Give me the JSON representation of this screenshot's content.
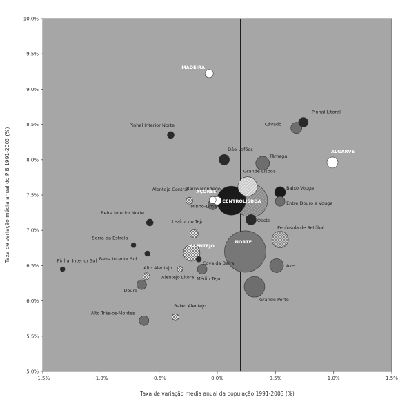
{
  "chart_data": {
    "type": "scatter",
    "title": "",
    "xlabel": "Taxa de variação média anual da população 1991-2003 (%)",
    "ylabel": "Taxa de variação média anual do PIB 1991-2003 (%)",
    "xlim": [
      -1.5,
      1.5
    ],
    "ylim": [
      5.0,
      10.0
    ],
    "x_tick_labels": [
      "-1,5%",
      "-1,0%",
      "-0,5%",
      "0,0%",
      "0,5%",
      "1,0%",
      "1,5%"
    ],
    "y_tick_labels": [
      "5,0%",
      "5,5%",
      "6,0%",
      "6,5%",
      "7,0%",
      "7,5%",
      "8,0%",
      "8,5%",
      "9,0%",
      "9,5%",
      "10,0%"
    ],
    "reference_line_x": 0.2,
    "grid": false,
    "points": [
      {
        "label": "MADEIRA",
        "x": -0.07,
        "y": 9.22
      },
      {
        "label": "Pinhal Litoral",
        "x": 0.74,
        "y": 8.53
      },
      {
        "label": "Cávado",
        "x": 0.68,
        "y": 8.45
      },
      {
        "label": "ALGARVE",
        "x": 0.99,
        "y": 7.96
      },
      {
        "label": "Pinhal Interior Norte",
        "x": -0.4,
        "y": 8.35
      },
      {
        "label": "Dão-Lafões",
        "x": 0.06,
        "y": 8.0
      },
      {
        "label": "Tâmega",
        "x": 0.39,
        "y": 7.95
      },
      {
        "label": "Grande Lisboa",
        "x": 0.26,
        "y": 7.62
      },
      {
        "label": "Baixo Mondego",
        "x": 0.0,
        "y": 7.42
      },
      {
        "label": "AÇORES",
        "x": -0.04,
        "y": 7.43
      },
      {
        "label": "Alentejo Central",
        "x": -0.24,
        "y": 7.42
      },
      {
        "label": "Minho-Lima",
        "x": -0.04,
        "y": 7.36
      },
      {
        "label": "CENTRO",
        "x": 0.12,
        "y": 7.42
      },
      {
        "label": "LISBOA",
        "x": 0.29,
        "y": 7.42
      },
      {
        "label": "Baixo Vouga",
        "x": 0.54,
        "y": 7.54
      },
      {
        "label": "Entre Douro e Vouga",
        "x": 0.54,
        "y": 7.41
      },
      {
        "label": "Oeste",
        "x": 0.29,
        "y": 7.15
      },
      {
        "label": "Beira Interior Norte",
        "x": -0.58,
        "y": 7.11
      },
      {
        "label": "Lezíria do Tejo",
        "x": -0.2,
        "y": 6.95
      },
      {
        "label": "Península de Setúbal",
        "x": 0.54,
        "y": 6.87
      },
      {
        "label": "NORTE",
        "x": 0.24,
        "y": 6.7
      },
      {
        "label": "Serra da Estrela",
        "x": -0.72,
        "y": 6.79
      },
      {
        "label": "ALENTEJO",
        "x": -0.22,
        "y": 6.68
      },
      {
        "label": "Beira Interior Sul",
        "x": -0.6,
        "y": 6.67
      },
      {
        "label": "Cova da Beira",
        "x": -0.16,
        "y": 6.59
      },
      {
        "label": "Ave",
        "x": 0.51,
        "y": 6.5
      },
      {
        "label": "Pinhal Interior Sul",
        "x": -1.33,
        "y": 6.45
      },
      {
        "label": "Alto Alentejo",
        "x": -0.61,
        "y": 6.35
      },
      {
        "label": "Médio Tejo",
        "x": -0.13,
        "y": 6.45
      },
      {
        "label": "Alentejo Litoral",
        "x": -0.32,
        "y": 6.45
      },
      {
        "label": "Douro",
        "x": -0.65,
        "y": 6.23
      },
      {
        "label": "Grande Porto",
        "x": 0.32,
        "y": 6.2
      },
      {
        "label": "Baixo Alentejo",
        "x": -0.36,
        "y": 5.77
      },
      {
        "label": "Alto Trás-os-Montes",
        "x": -0.63,
        "y": 5.72
      }
    ]
  },
  "markers": [
    {
      "r": 6,
      "fill": "#ffffff",
      "tx": -40,
      "ty": -7,
      "anchor": "start",
      "white": true
    },
    {
      "r": 7,
      "fill": "#2a2a2a",
      "tx": 12,
      "ty": -13,
      "anchor": "start",
      "white": false
    },
    {
      "r": 8,
      "fill": "#6e6e6e",
      "tx": -46,
      "ty": -3,
      "anchor": "start",
      "white": false
    },
    {
      "r": 8,
      "fill": "#ffffff",
      "tx": -2,
      "ty": -14,
      "anchor": "start",
      "white": true
    },
    {
      "r": 5,
      "fill": "#2a2a2a",
      "tx": -60,
      "ty": -12,
      "anchor": "start",
      "white": false
    },
    {
      "r": 7.5,
      "fill": "#2a2a2a",
      "tx": 5,
      "ty": -13,
      "anchor": "start",
      "white": false
    },
    {
      "r": 10,
      "fill": "#6e6e6e",
      "tx": 10,
      "ty": -8,
      "anchor": "start",
      "white": false
    },
    {
      "r": 14,
      "fill": "pat-hatch-light",
      "tx": -6,
      "ty": -20,
      "anchor": "start",
      "white": false
    },
    {
      "r": 6,
      "fill": "#ffffff",
      "tx": -45,
      "ty": -15,
      "anchor": "start",
      "white": false
    },
    {
      "r": 5,
      "fill": "#ffffff",
      "tx": -24,
      "ty": -10,
      "anchor": "start",
      "white": true
    },
    {
      "r": 5,
      "fill": "pat-cross-white",
      "tx": -54,
      "ty": -14,
      "anchor": "start",
      "white": false
    },
    {
      "r": 7,
      "fill": "#6e6e6e",
      "tx": -32,
      "ty": 4,
      "anchor": "start",
      "white": false
    },
    {
      "r": 21,
      "fill": "#1a1a1a",
      "tx": -13,
      "ty": 3,
      "anchor": "start",
      "white": true
    },
    {
      "r": 24,
      "fill": "pat-hatch-gray",
      "tx": -12,
      "ty": 3,
      "anchor": "start",
      "white": true
    },
    {
      "r": 8,
      "fill": "#1a1a1a",
      "tx": 9,
      "ty": -4,
      "anchor": "start",
      "white": false
    },
    {
      "r": 7,
      "fill": "#6e6e6e",
      "tx": 9,
      "ty": 5,
      "anchor": "start",
      "white": false
    },
    {
      "r": 7.5,
      "fill": "#2a2a2a",
      "tx": 9,
      "ty": 3,
      "anchor": "start",
      "white": false
    },
    {
      "r": 5,
      "fill": "#2a2a2a",
      "tx": -71,
      "ty": -12,
      "anchor": "start",
      "white": false
    },
    {
      "r": 6,
      "fill": "pat-cross-white",
      "tx": -32,
      "ty": -16,
      "anchor": "start",
      "white": false
    },
    {
      "r": 12,
      "fill": "pat-cross-gray",
      "tx": -4,
      "ty": -15,
      "anchor": "start",
      "white": false
    },
    {
      "r": 30,
      "fill": "#777777",
      "tx": -15,
      "ty": -12,
      "anchor": "start",
      "white": true
    },
    {
      "r": 3.5,
      "fill": "#2a2a2a",
      "tx": -60,
      "ty": -8,
      "anchor": "start",
      "white": false
    },
    {
      "r": 12,
      "fill": "pat-cross-white",
      "tx": -3,
      "ty": -8,
      "anchor": "start",
      "white": true
    },
    {
      "r": 4,
      "fill": "#2a2a2a",
      "tx": -70,
      "ty": 10,
      "anchor": "start",
      "white": false
    },
    {
      "r": 4,
      "fill": "#2a2a2a",
      "tx": 6,
      "ty": 8,
      "anchor": "start",
      "white": false
    },
    {
      "r": 10,
      "fill": "#6e6e6e",
      "tx": 14,
      "ty": 2,
      "anchor": "start",
      "white": false
    },
    {
      "r": 3.5,
      "fill": "#2a2a2a",
      "tx": -8,
      "ty": -10,
      "anchor": "start",
      "white": false
    },
    {
      "r": 5,
      "fill": "pat-cross-white",
      "tx": -4,
      "ty": -10,
      "anchor": "start",
      "white": false
    },
    {
      "r": 7,
      "fill": "#6e6e6e",
      "tx": -8,
      "ty": 16,
      "anchor": "start",
      "white": false
    },
    {
      "r": 4,
      "fill": "pat-cross-white",
      "tx": -27,
      "ty": 14,
      "anchor": "start",
      "white": false
    },
    {
      "r": 7,
      "fill": "#6e6e6e",
      "tx": -26,
      "ty": 11,
      "anchor": "start",
      "white": false
    },
    {
      "r": 15,
      "fill": "#6e6e6e",
      "tx": 7,
      "ty": 21,
      "anchor": "start",
      "white": false
    },
    {
      "r": 5,
      "fill": "pat-cross-white",
      "tx": -2,
      "ty": -14,
      "anchor": "start",
      "white": false
    },
    {
      "r": 7,
      "fill": "#6e6e6e",
      "tx": -77,
      "ty": -9,
      "anchor": "start",
      "white": false
    }
  ]
}
